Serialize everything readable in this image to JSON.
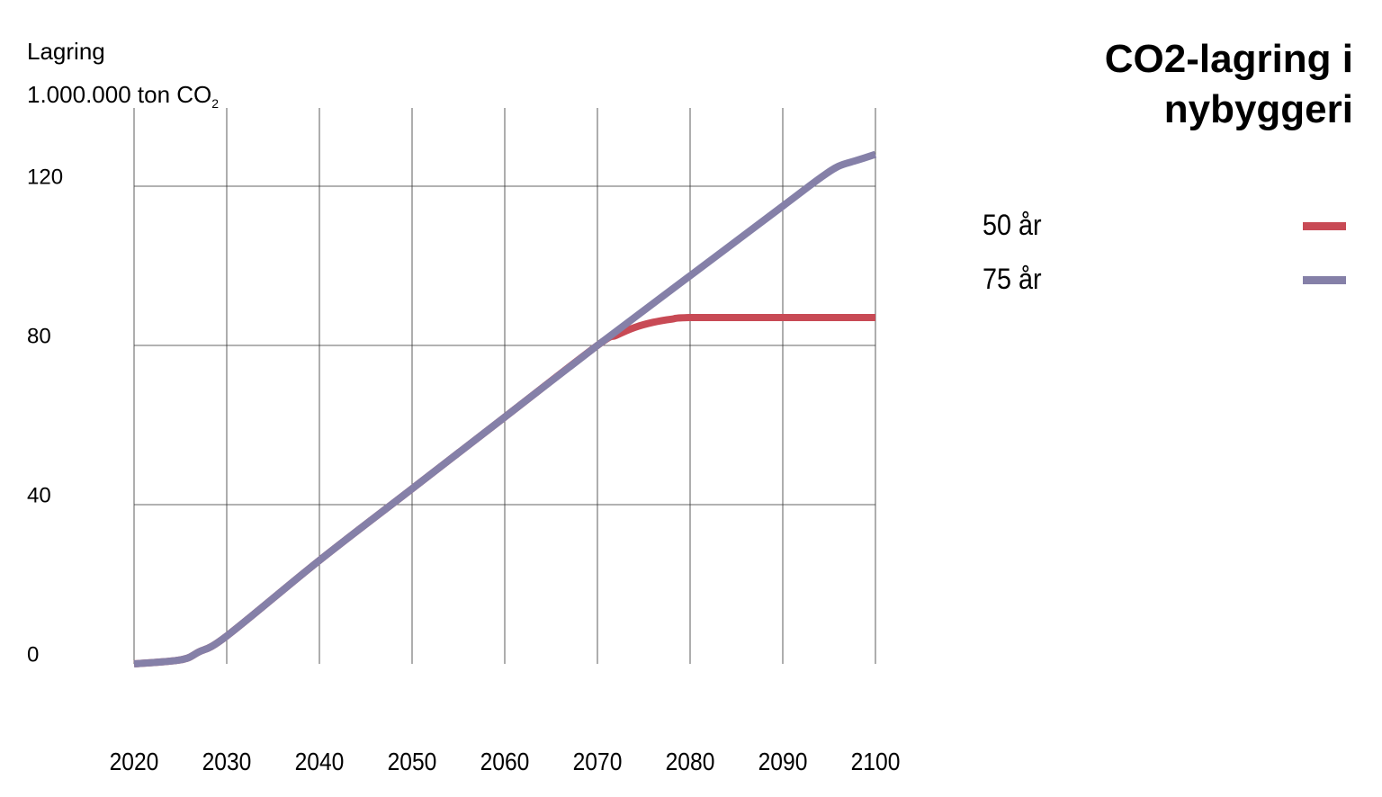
{
  "chart_data": {
    "type": "line",
    "title_lines": [
      "CO2-lagring i",
      "nybyggeri"
    ],
    "ylabel_line1": "Lagring",
    "ylabel_line2_main": "1.000.000 ton CO",
    "ylabel_line2_sub": "2",
    "xlim": [
      2020,
      2100
    ],
    "ylim": [
      0,
      140
    ],
    "xticks": [
      2020,
      2030,
      2040,
      2050,
      2060,
      2070,
      2080,
      2090,
      2100
    ],
    "xtick_labels": [
      "2020",
      "2030",
      "2040",
      "2050",
      "2060",
      "2070",
      "2080",
      "2090",
      "2100"
    ],
    "yticks": [
      0,
      40,
      80,
      120
    ],
    "ytick_labels": [
      "0",
      "40",
      "80",
      "120"
    ],
    "grid": true,
    "legend_position": "right",
    "series": [
      {
        "name": "50 år",
        "color": "#c84a55",
        "x": [
          2020,
          2025,
          2027,
          2030,
          2040,
          2050,
          2060,
          2070,
          2072,
          2074,
          2076,
          2078,
          2080,
          2090,
          2100
        ],
        "y": [
          0,
          1,
          3,
          7,
          26,
          44,
          62,
          80,
          82.5,
          84.5,
          85.8,
          86.6,
          87,
          87,
          87
        ]
      },
      {
        "name": "75 år",
        "color": "#8580a8",
        "x": [
          2020,
          2025,
          2027,
          2030,
          2040,
          2050,
          2060,
          2070,
          2080,
          2090,
          2094,
          2096,
          2098,
          2100
        ],
        "y": [
          0,
          1,
          3,
          7,
          26,
          44,
          62,
          80,
          97.5,
          115,
          122,
          125,
          126.5,
          128
        ]
      }
    ]
  }
}
